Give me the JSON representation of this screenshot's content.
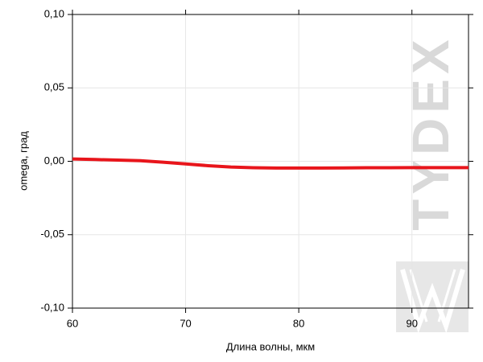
{
  "chart_data": {
    "type": "line",
    "x_label": "Длина волны, мкм",
    "y_label": "omega, град",
    "watermark": "TYDEX",
    "x": [
      60,
      62,
      64,
      66,
      68,
      70,
      72,
      74,
      76,
      78,
      80,
      82,
      84,
      86,
      88,
      90,
      92,
      95
    ],
    "series": [
      {
        "name": "omega",
        "color": "#e8151b",
        "values": [
          0.0016,
          0.0012,
          0.0008,
          0.0004,
          -0.0006,
          -0.0018,
          -0.003,
          -0.0039,
          -0.0044,
          -0.0046,
          -0.0046,
          -0.0046,
          -0.0045,
          -0.0044,
          -0.0044,
          -0.0043,
          -0.0043,
          -0.0043
        ]
      }
    ],
    "xlim": [
      60,
      95
    ],
    "ylim": [
      -0.1,
      0.1
    ],
    "xticks": [
      60,
      70,
      80,
      90
    ],
    "yticks": [
      {
        "value": -0.1,
        "label": "-0,10"
      },
      {
        "value": -0.05,
        "label": "-0,05"
      },
      {
        "value": 0,
        "label": "0,00"
      },
      {
        "value": 0.05,
        "label": "0,05"
      },
      {
        "value": 0.1,
        "label": "0,10"
      }
    ],
    "grid": true
  }
}
